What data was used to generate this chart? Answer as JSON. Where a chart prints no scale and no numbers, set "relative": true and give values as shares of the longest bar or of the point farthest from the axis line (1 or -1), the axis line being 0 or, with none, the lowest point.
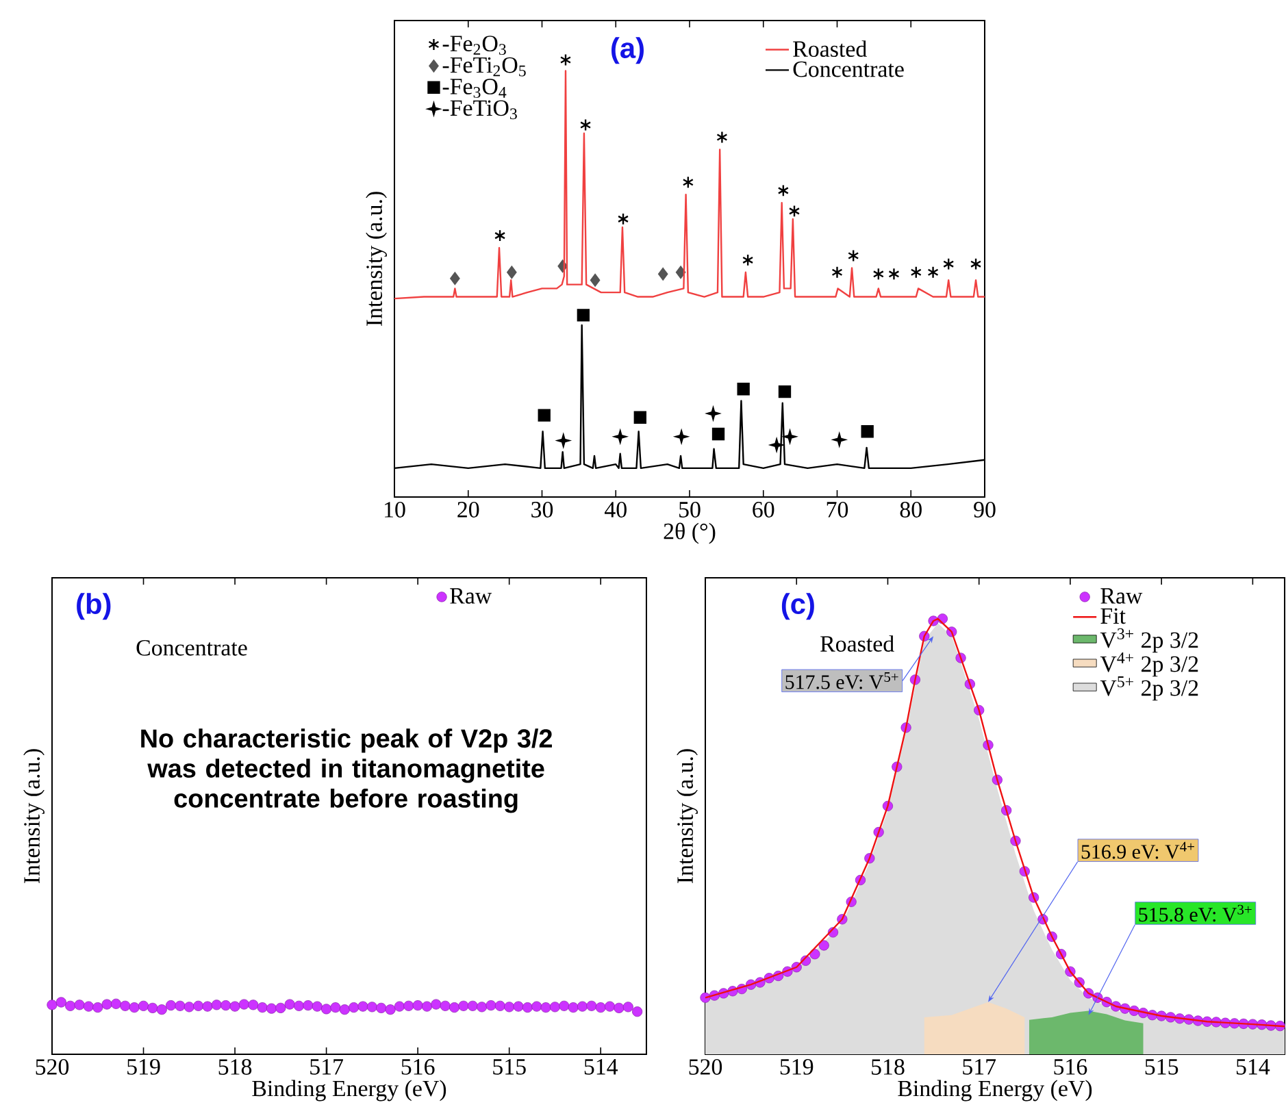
{
  "chart_data": [
    {
      "type": "line",
      "title": "(a)",
      "xlabel": "2θ (°)",
      "ylabel": "Intensity (a.u.)",
      "relative": true,
      "legend": "top right",
      "xlim": [
        10,
        90
      ],
      "xticks": [
        10,
        20,
        30,
        40,
        50,
        60,
        70,
        80,
        90
      ],
      "series": [
        {
          "name": "Roasted",
          "color": "#f04040",
          "x": [
            10,
            14,
            18,
            18.2,
            18.4,
            20,
            23.9,
            24.2,
            24.5,
            25.6,
            25.8,
            26.0,
            28,
            30,
            32,
            32.7,
            33.0,
            33.2,
            33.4,
            34.5,
            35.4,
            35.7,
            36.0,
            38,
            40.6,
            40.9,
            41.2,
            43,
            45,
            47,
            49.2,
            49.5,
            49.8,
            52,
            53.8,
            54.1,
            54.4,
            56,
            57.3,
            57.6,
            57.9,
            60,
            62.2,
            62.5,
            62.8,
            63.7,
            64.0,
            64.3,
            66,
            69,
            69.8,
            70.1,
            71.7,
            72.0,
            72.3,
            75.3,
            75.6,
            75.9,
            78,
            80.7,
            81,
            83,
            84.8,
            85.1,
            85.4,
            88.5,
            88.8,
            89.1,
            90
          ],
          "values": [
            0.454,
            0.458,
            0.458,
            0.477,
            0.458,
            0.458,
            0.458,
            0.57,
            0.458,
            0.458,
            0.496,
            0.458,
            0.468,
            0.477,
            0.477,
            0.486,
            0.505,
            0.975,
            0.486,
            0.486,
            0.486,
            0.832,
            0.486,
            0.468,
            0.468,
            0.617,
            0.468,
            0.458,
            0.458,
            0.468,
            0.477,
            0.692,
            0.468,
            0.458,
            0.468,
            0.795,
            0.458,
            0.458,
            0.458,
            0.514,
            0.458,
            0.458,
            0.468,
            0.673,
            0.477,
            0.477,
            0.636,
            0.458,
            0.458,
            0.458,
            0.458,
            0.477,
            0.458,
            0.524,
            0.458,
            0.458,
            0.477,
            0.458,
            0.458,
            0.458,
            0.477,
            0.458,
            0.458,
            0.496,
            0.458,
            0.458,
            0.496,
            0.458,
            0.458
          ]
        },
        {
          "name": "Concentrate",
          "color": "#000000",
          "x": [
            10,
            15,
            20,
            25,
            29.8,
            30.1,
            30.4,
            32.6,
            32.8,
            33.0,
            35.2,
            35.4,
            35.7,
            36.9,
            37.1,
            37.3,
            40,
            40.4,
            40.6,
            40.8,
            42.8,
            43.1,
            43.4,
            47,
            48.6,
            48.8,
            49.0,
            50,
            53.1,
            53.3,
            53.6,
            56.7,
            57.0,
            57.3,
            60,
            62.3,
            62.6,
            62.9,
            66,
            70,
            73.7,
            74.0,
            74.3,
            80,
            85,
            90
          ],
          "values": [
            0.066,
            0.075,
            0.066,
            0.075,
            0.066,
            0.15,
            0.066,
            0.066,
            0.103,
            0.066,
            0.075,
            0.393,
            0.075,
            0.066,
            0.094,
            0.066,
            0.075,
            0.066,
            0.099,
            0.066,
            0.066,
            0.15,
            0.066,
            0.075,
            0.066,
            0.094,
            0.066,
            0.066,
            0.066,
            0.11,
            0.066,
            0.066,
            0.22,
            0.075,
            0.066,
            0.075,
            0.215,
            0.075,
            0.066,
            0.075,
            0.066,
            0.113,
            0.066,
            0.066,
            0.075,
            0.085
          ]
        },
        {
          "name": "-Fe$_{2}$O$_{3}$",
          "type": "scatter",
          "marker": "cross",
          "color": "#000000",
          "x": [
            24.3,
            33.2,
            35.9,
            41.0,
            49.8,
            54.4,
            57.9,
            62.7,
            64.2,
            70.0,
            72.2,
            75.6,
            77.7,
            80.7,
            83.0,
            85.1,
            88.8
          ],
          "values": [
            0.598,
            1.0,
            0.851,
            0.636,
            0.72,
            0.823,
            0.542,
            0.701,
            0.654,
            0.514,
            0.552,
            0.51,
            0.51,
            0.514,
            0.514,
            0.533,
            0.533
          ]
        },
        {
          "name": "-FeTi$_{2}$O$_{5}$",
          "type": "scatter",
          "marker": "diamond",
          "color": "#555555",
          "x": [
            18.2,
            25.9,
            32.8,
            37.2,
            46.4,
            48.8
          ],
          "values": [
            0.5,
            0.514,
            0.528,
            0.496,
            0.51,
            0.514
          ]
        },
        {
          "name": "-Fe$_{3}$O$_{4}$",
          "type": "scatter",
          "marker": "square",
          "color": "#000000",
          "x": [
            30.3,
            35.6,
            43.3,
            53.9,
            57.3,
            62.9,
            74.1
          ],
          "values": [
            0.187,
            0.416,
            0.182,
            0.144,
            0.247,
            0.241,
            0.15
          ]
        },
        {
          "name": "-FeTiO$_{3}$",
          "type": "scatter",
          "marker": "star",
          "color": "#000000",
          "x": [
            32.9,
            40.6,
            48.9,
            53.2,
            61.8,
            63.6,
            70.3
          ],
          "values": [
            0.129,
            0.138,
            0.138,
            0.191,
            0.119,
            0.138,
            0.131
          ]
        }
      ]
    },
    {
      "type": "scatter",
      "title": "(b)",
      "xlabel": "Binding Energy (eV)",
      "ylabel": "Intensity (a.u.)",
      "relative": true,
      "legend": "top right",
      "marker": "circle",
      "xlim": [
        520,
        513.5
      ],
      "xticks": [
        520,
        519,
        518,
        517,
        516,
        515,
        514
      ],
      "annotations": [
        "Concentrate",
        "No characteristic peak of V2p 3/2 was detected in titanomagnetite concentrate before roasting"
      ],
      "series": [
        {
          "name": "Raw",
          "color": "#cc33ff",
          "x": [
            520.0,
            519.9,
            519.8,
            519.7,
            519.6,
            519.5,
            519.4,
            519.3,
            519.2,
            519.1,
            519.0,
            518.9,
            518.8,
            518.7,
            518.6,
            518.5,
            518.4,
            518.3,
            518.2,
            518.1,
            518.0,
            517.9,
            517.8,
            517.7,
            517.6,
            517.5,
            517.4,
            517.3,
            517.2,
            517.1,
            517.0,
            516.9,
            516.8,
            516.7,
            516.6,
            516.5,
            516.4,
            516.3,
            516.2,
            516.1,
            516.0,
            515.9,
            515.8,
            515.7,
            515.6,
            515.5,
            515.4,
            515.3,
            515.2,
            515.1,
            515.0,
            514.9,
            514.8,
            514.7,
            514.6,
            514.5,
            514.4,
            514.3,
            514.2,
            514.1,
            514.0,
            513.9,
            513.8,
            513.7,
            513.6
          ],
          "values": [
            0.95,
            1.0,
            0.93,
            0.95,
            0.92,
            0.9,
            0.96,
            0.97,
            0.93,
            0.9,
            0.93,
            0.89,
            0.86,
            0.94,
            0.93,
            0.91,
            0.93,
            0.92,
            0.95,
            0.94,
            0.92,
            0.96,
            0.95,
            0.9,
            0.88,
            0.89,
            0.96,
            0.93,
            0.94,
            0.92,
            0.87,
            0.9,
            0.86,
            0.9,
            0.92,
            0.91,
            0.89,
            0.86,
            0.92,
            0.93,
            0.94,
            0.92,
            0.96,
            0.93,
            0.9,
            0.93,
            0.93,
            0.91,
            0.94,
            0.93,
            0.91,
            0.92,
            0.9,
            0.92,
            0.9,
            0.91,
            0.93,
            0.9,
            0.92,
            0.93,
            0.9,
            0.92,
            0.89,
            0.91,
            0.82
          ]
        }
      ]
    },
    {
      "type": "line",
      "title": "(c)",
      "xlabel": "Binding Energy (eV)",
      "ylabel": "Intensity (a.u.)",
      "relative": true,
      "legend": "top right",
      "xlim": [
        520,
        513.65
      ],
      "xticks": [
        520,
        519,
        518,
        517,
        516,
        515,
        514
      ],
      "annotations": [
        "Roasted",
        {
          "text": "517.5 eV: V$^{5+}$",
          "x": 517.5,
          "y": 0.96
        },
        {
          "text": "516.9 eV: V$^{4+}$",
          "x": 516.9,
          "y": 0.12
        },
        {
          "text": "515.8 eV: V$^{3+}$",
          "x": 515.8,
          "y": 0.09
        }
      ],
      "series": [
        {
          "name": "Raw",
          "type": "scatter",
          "marker": "circle",
          "color": "#cc33ff",
          "x": [
            520.0,
            519.9,
            519.8,
            519.7,
            519.6,
            519.5,
            519.4,
            519.3,
            519.2,
            519.1,
            519.0,
            518.9,
            518.8,
            518.7,
            518.6,
            518.5,
            518.4,
            518.3,
            518.2,
            518.1,
            518.0,
            517.9,
            517.8,
            517.7,
            517.6,
            517.5,
            517.4,
            517.3,
            517.2,
            517.1,
            517.0,
            516.9,
            516.8,
            516.7,
            516.6,
            516.5,
            516.4,
            516.3,
            516.2,
            516.1,
            516.0,
            515.9,
            515.8,
            515.7,
            515.6,
            515.5,
            515.4,
            515.3,
            515.2,
            515.1,
            515.0,
            514.9,
            514.8,
            514.7,
            514.6,
            514.5,
            514.4,
            514.3,
            514.2,
            514.1,
            514.0,
            513.9,
            513.8,
            513.7
          ],
          "values": [
            0.13,
            0.135,
            0.14,
            0.145,
            0.15,
            0.16,
            0.165,
            0.175,
            0.18,
            0.19,
            0.2,
            0.215,
            0.23,
            0.25,
            0.28,
            0.31,
            0.35,
            0.4,
            0.45,
            0.51,
            0.57,
            0.66,
            0.75,
            0.86,
            0.96,
            0.995,
            1.0,
            0.97,
            0.91,
            0.85,
            0.79,
            0.71,
            0.63,
            0.56,
            0.49,
            0.42,
            0.36,
            0.31,
            0.27,
            0.23,
            0.19,
            0.165,
            0.14,
            0.13,
            0.12,
            0.11,
            0.105,
            0.1,
            0.095,
            0.09,
            0.088,
            0.085,
            0.082,
            0.08,
            0.077,
            0.075,
            0.074,
            0.072,
            0.071,
            0.07,
            0.069,
            0.068,
            0.066,
            0.065
          ]
        },
        {
          "name": "Fit",
          "type": "line",
          "color": "#ee1111",
          "x": [
            520,
            519.5,
            519,
            518.5,
            518.2,
            518,
            517.8,
            517.7,
            517.6,
            517.5,
            517.45,
            517.3,
            517.2,
            517.1,
            517,
            516.9,
            516.8,
            516.7,
            516.6,
            516.4,
            516.2,
            516,
            515.8,
            515.5,
            515,
            514.5,
            514,
            513.65
          ],
          "values": [
            0.13,
            0.16,
            0.2,
            0.31,
            0.45,
            0.57,
            0.75,
            0.86,
            0.96,
            0.995,
            1.0,
            0.97,
            0.91,
            0.85,
            0.79,
            0.71,
            0.63,
            0.56,
            0.49,
            0.36,
            0.27,
            0.19,
            0.14,
            0.11,
            0.088,
            0.075,
            0.069,
            0.064
          ]
        },
        {
          "name": "V$^{3+}$ 2p 3/2",
          "type": "area",
          "color": "#6cb86c",
          "x": [
            516.45,
            516.2,
            516.0,
            515.8,
            515.6,
            515.4,
            515.2
          ],
          "values": [
            0.079,
            0.085,
            0.095,
            0.1,
            0.092,
            0.078,
            0.071
          ]
        },
        {
          "name": "V$^{4+}$ 2p 3/2",
          "type": "area",
          "color": "#f6dcc0",
          "x": [
            517.6,
            517.3,
            517.1,
            516.9,
            516.7,
            516.5
          ],
          "values": [
            0.085,
            0.09,
            0.105,
            0.12,
            0.105,
            0.085
          ]
        },
        {
          "name": "V$^{5+}$ 2p 3/2",
          "type": "area",
          "color": "#dddddd",
          "x": [
            520,
            519.5,
            519,
            518.5,
            518.2,
            518,
            517.8,
            517.6,
            517.45,
            517.3,
            517.2,
            517,
            516.8,
            516.6,
            516.4,
            516.2,
            516,
            515.8,
            515.5,
            515,
            514.5,
            514,
            513.65
          ],
          "values": [
            0.125,
            0.155,
            0.195,
            0.3,
            0.44,
            0.56,
            0.74,
            0.95,
            0.99,
            0.96,
            0.9,
            0.77,
            0.61,
            0.46,
            0.33,
            0.24,
            0.17,
            0.13,
            0.1,
            0.08,
            0.07,
            0.065,
            0.061
          ]
        }
      ]
    }
  ]
}
